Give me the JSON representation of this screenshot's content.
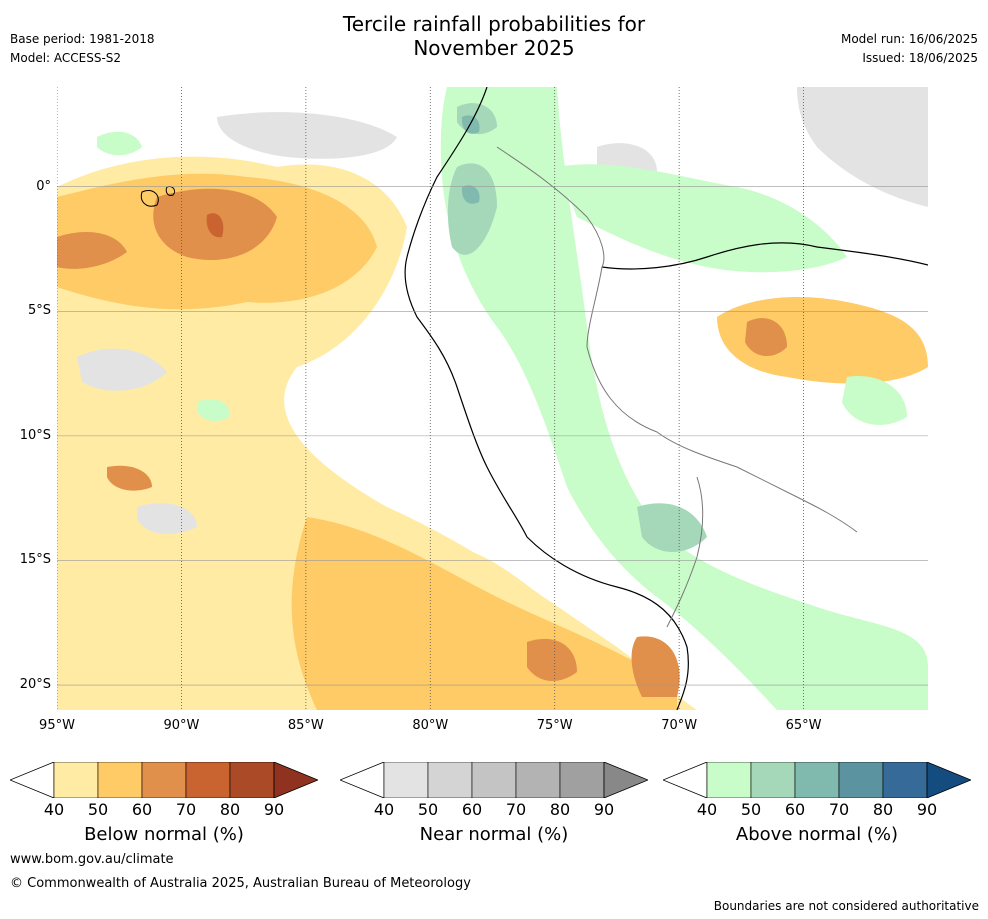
{
  "header": {
    "title_line1": "Tercile rainfall probabilities for",
    "title_line2": "November 2025",
    "base_period": "Base period: 1981-2018",
    "model": "Model: ACCESS-S2",
    "model_run": "Model run: 16/06/2025",
    "issued": "Issued: 18/06/2025"
  },
  "map": {
    "lat_labels": [
      "0°",
      "5°S",
      "10°S",
      "15°S",
      "20°S"
    ],
    "lon_labels": [
      "95°W",
      "90°W",
      "85°W",
      "80°W",
      "75°W",
      "70°W",
      "65°W"
    ],
    "lat_values": [
      0,
      -5,
      -10,
      -15,
      -20
    ],
    "lon_values": [
      -95,
      -90,
      -85,
      -80,
      -75,
      -70,
      -65
    ],
    "extent": {
      "west": -95,
      "east": -60,
      "north": 4,
      "south": -21
    }
  },
  "colorbars": [
    {
      "label": "Below normal (%)",
      "ticks": [
        "40",
        "50",
        "60",
        "70",
        "80",
        "90"
      ],
      "colors": [
        "#ffeba3",
        "#fecb66",
        "#e0904a",
        "#c9632f",
        "#ab4a26",
        "#8f3320"
      ]
    },
    {
      "label": "Near normal (%)",
      "ticks": [
        "40",
        "50",
        "60",
        "70",
        "80",
        "90"
      ],
      "colors": [
        "#e3e3e3",
        "#d4d4d4",
        "#c4c4c4",
        "#b3b3b3",
        "#a0a0a0",
        "#888888"
      ]
    },
    {
      "label": "Above normal (%)",
      "ticks": [
        "40",
        "50",
        "60",
        "70",
        "80",
        "90"
      ],
      "colors": [
        "#c8fcc8",
        "#a5d8b9",
        "#80b9ad",
        "#5b94a0",
        "#356a99",
        "#154c80"
      ]
    }
  ],
  "footer": {
    "website": "www.bom.gov.au/climate",
    "copyright": "© Commonwealth of Australia 2025, Australian Bureau of Meteorology",
    "disclaimer": "Boundaries are not considered authoritative"
  }
}
